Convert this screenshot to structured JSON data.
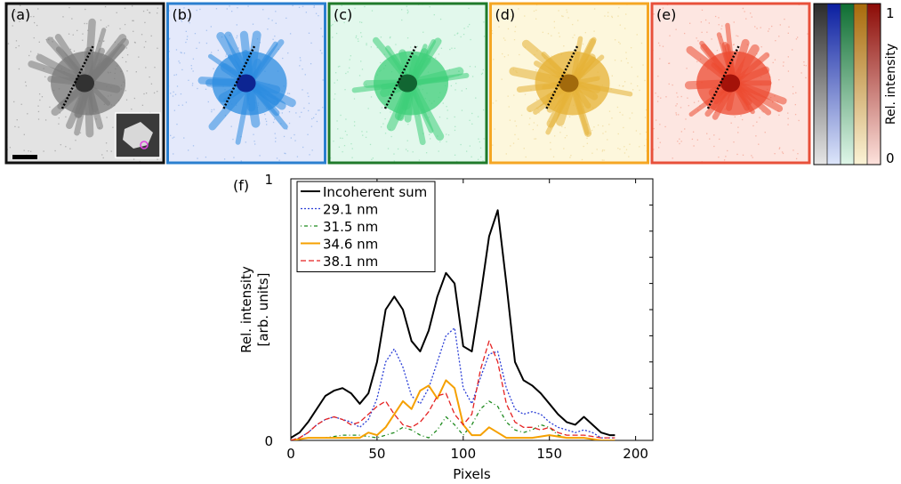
{
  "panels": [
    {
      "label": "(a)",
      "border": "#111111",
      "bg": "#e3e3e3",
      "blob": "#7a7a7a",
      "core": "#2a2a2a",
      "speck": "#9a9a9a"
    },
    {
      "label": "(b)",
      "border": "#2a7fcf",
      "bg": "#e4e9fb",
      "blob": "#2c8ce0",
      "core": "#0a1a8a",
      "speck": "#8fb2ea"
    },
    {
      "label": "(c)",
      "border": "#1f7a2a",
      "bg": "#e2f8ec",
      "blob": "#3fcf7a",
      "core": "#0c5a2a",
      "speck": "#97dfb6"
    },
    {
      "label": "(d)",
      "border": "#f5a623",
      "bg": "#fdf7dc",
      "blob": "#e5b236",
      "core": "#9a6208",
      "speck": "#eed795"
    },
    {
      "label": "(e)",
      "border": "#e8503a",
      "bg": "#fde6e1",
      "blob": "#ec4a30",
      "core": "#9c0c06",
      "speck": "#f3a08f"
    }
  ],
  "colorbar": {
    "max_label": "1",
    "min_label": "0",
    "axis_label": "Rel. intensity",
    "columns": [
      {
        "top": "#2b2b2b",
        "bottom": "#e6e6e6"
      },
      {
        "top": "#0a1ea0",
        "bottom": "#dde6fa"
      },
      {
        "top": "#0e6e32",
        "bottom": "#dff6e8"
      },
      {
        "top": "#a86a0a",
        "bottom": "#fbf3d6"
      },
      {
        "top": "#8c0b06",
        "bottom": "#fde2dc"
      }
    ]
  },
  "chart_data": {
    "panel_label": "(f)",
    "type": "line",
    "xlabel": "Pixels",
    "ylabel_line1": "Rel. intensity",
    "ylabel_line2": "[arb. units]",
    "xlim": [
      0,
      210
    ],
    "ylim": [
      0,
      1
    ],
    "xticks": [
      0,
      50,
      100,
      150,
      200
    ],
    "yticks": [
      0,
      1
    ],
    "legend_position": "top-left",
    "series": [
      {
        "name": "Incoherent sum",
        "color": "#000000",
        "dash": "",
        "width": 2,
        "x": [
          0,
          5,
          10,
          15,
          20,
          25,
          30,
          35,
          40,
          45,
          50,
          55,
          60,
          65,
          70,
          75,
          80,
          85,
          90,
          95,
          100,
          105,
          110,
          115,
          120,
          125,
          130,
          135,
          140,
          145,
          150,
          155,
          160,
          165,
          170,
          175,
          180,
          185,
          188
        ],
        "y": [
          0.01,
          0.03,
          0.07,
          0.12,
          0.17,
          0.19,
          0.2,
          0.18,
          0.14,
          0.18,
          0.3,
          0.5,
          0.55,
          0.5,
          0.38,
          0.34,
          0.42,
          0.55,
          0.64,
          0.6,
          0.36,
          0.34,
          0.55,
          0.78,
          0.88,
          0.6,
          0.3,
          0.23,
          0.21,
          0.18,
          0.14,
          0.1,
          0.07,
          0.06,
          0.09,
          0.06,
          0.03,
          0.02,
          0.02
        ]
      },
      {
        "name": "29.1 nm",
        "color": "#2b3fd6",
        "dash": "2,2",
        "width": 1.3,
        "x": [
          0,
          5,
          10,
          15,
          20,
          25,
          30,
          35,
          40,
          45,
          50,
          55,
          60,
          65,
          70,
          75,
          80,
          85,
          90,
          95,
          100,
          105,
          110,
          115,
          120,
          125,
          130,
          135,
          140,
          145,
          150,
          155,
          160,
          165,
          170,
          175,
          180,
          185,
          188
        ],
        "y": [
          0,
          0.01,
          0.03,
          0.06,
          0.08,
          0.09,
          0.08,
          0.07,
          0.05,
          0.08,
          0.16,
          0.3,
          0.35,
          0.28,
          0.17,
          0.14,
          0.2,
          0.3,
          0.4,
          0.43,
          0.2,
          0.14,
          0.24,
          0.33,
          0.34,
          0.2,
          0.12,
          0.1,
          0.11,
          0.1,
          0.07,
          0.05,
          0.04,
          0.03,
          0.04,
          0.03,
          0.01,
          0.01,
          0.01
        ]
      },
      {
        "name": "31.5 nm",
        "color": "#1e8a1e",
        "dash": "1,3,4,3",
        "width": 1.3,
        "x": [
          0,
          10,
          20,
          30,
          40,
          50,
          55,
          60,
          65,
          70,
          75,
          80,
          85,
          90,
          95,
          100,
          105,
          110,
          115,
          120,
          125,
          130,
          135,
          140,
          145,
          150,
          155,
          160,
          170,
          180,
          188
        ],
        "y": [
          0,
          0.01,
          0.01,
          0.02,
          0.02,
          0.01,
          0.02,
          0.03,
          0.05,
          0.04,
          0.02,
          0.01,
          0.04,
          0.09,
          0.06,
          0.02,
          0.06,
          0.12,
          0.15,
          0.13,
          0.07,
          0.04,
          0.03,
          0.04,
          0.06,
          0.05,
          0.02,
          0.01,
          0.01,
          0,
          0
        ]
      },
      {
        "name": "34.6 nm",
        "color": "#f5a000",
        "dash": "",
        "width": 2,
        "x": [
          0,
          10,
          20,
          30,
          40,
          45,
          50,
          55,
          60,
          65,
          70,
          75,
          80,
          85,
          90,
          95,
          100,
          105,
          110,
          115,
          120,
          125,
          130,
          140,
          150,
          160,
          170,
          180,
          188
        ],
        "y": [
          0,
          0.01,
          0.01,
          0.01,
          0.01,
          0.03,
          0.02,
          0.05,
          0.1,
          0.15,
          0.12,
          0.19,
          0.21,
          0.16,
          0.23,
          0.2,
          0.06,
          0.02,
          0.02,
          0.05,
          0.03,
          0.01,
          0.01,
          0.01,
          0.02,
          0.01,
          0.01,
          0,
          0
        ]
      },
      {
        "name": "38.1 nm",
        "color": "#e52222",
        "dash": "6,3",
        "width": 1.3,
        "x": [
          0,
          5,
          10,
          15,
          20,
          25,
          30,
          35,
          40,
          45,
          50,
          55,
          60,
          65,
          70,
          75,
          80,
          85,
          90,
          95,
          100,
          105,
          110,
          115,
          120,
          125,
          130,
          135,
          140,
          145,
          150,
          155,
          160,
          170,
          180,
          188
        ],
        "y": [
          0,
          0.01,
          0.03,
          0.06,
          0.08,
          0.09,
          0.08,
          0.06,
          0.07,
          0.1,
          0.13,
          0.15,
          0.1,
          0.06,
          0.05,
          0.07,
          0.11,
          0.17,
          0.18,
          0.1,
          0.06,
          0.1,
          0.27,
          0.38,
          0.3,
          0.14,
          0.07,
          0.05,
          0.05,
          0.04,
          0.05,
          0.03,
          0.02,
          0.02,
          0.01,
          0.01
        ]
      }
    ]
  }
}
